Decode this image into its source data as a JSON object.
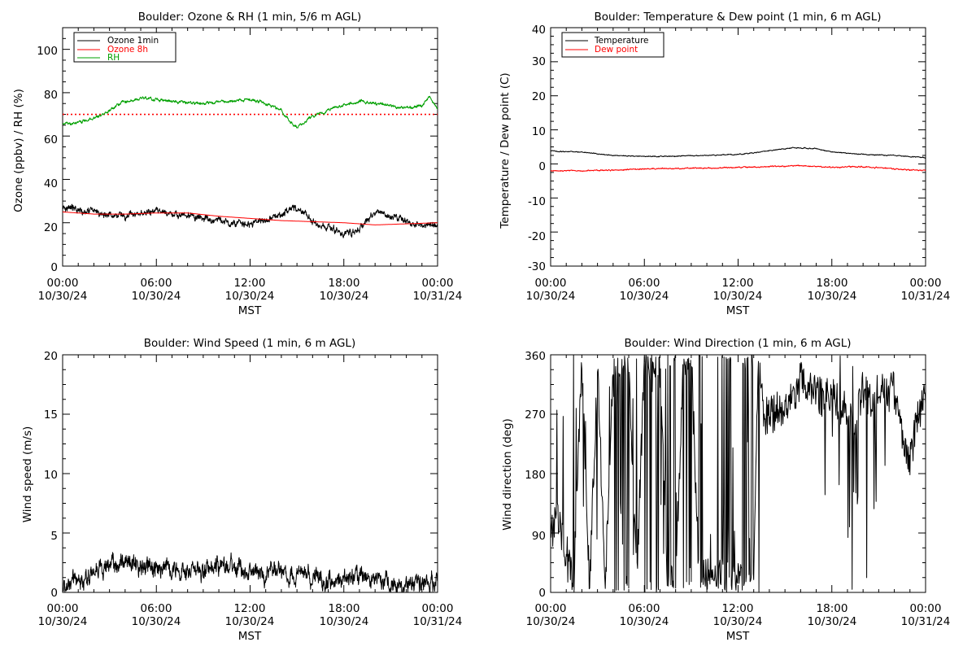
{
  "chart_data": [
    {
      "type": "line",
      "title": "Boulder: Ozone & RH (1 min, 5/6 m AGL)",
      "ylabel": "Ozone (ppbv) / RH (%)",
      "xlabel": "MST",
      "ylim": [
        0,
        110
      ],
      "yticks": [
        "0",
        "20",
        "40",
        "60",
        "80",
        "100"
      ],
      "yticks_values": [
        0,
        20,
        40,
        60,
        80,
        100
      ],
      "xticks": [
        [
          "00:00",
          "10/30/24"
        ],
        [
          "06:00",
          "10/30/24"
        ],
        [
          "12:00",
          "10/30/24"
        ],
        [
          "18:00",
          "10/30/24"
        ],
        [
          "00:00",
          "10/31/24"
        ]
      ],
      "x_unit": "hours since 10/30/24 00:00 MST",
      "legend_position": "top-left",
      "reference_line": {
        "y": 70,
        "style": "dotted",
        "color": "#ff0000"
      },
      "series": [
        {
          "name": "Ozone 1min",
          "color": "#000000",
          "noise": 1.8,
          "points": [
            [
              0,
              28
            ],
            [
              1,
              26
            ],
            [
              2,
              25
            ],
            [
              3,
              24
            ],
            [
              4,
              23
            ],
            [
              5,
              24
            ],
            [
              6,
              25
            ],
            [
              7,
              24
            ],
            [
              8,
              23
            ],
            [
              9,
              22
            ],
            [
              10,
              21
            ],
            [
              11,
              20
            ],
            [
              12,
              19
            ],
            [
              13,
              21
            ],
            [
              14,
              24
            ],
            [
              14.7,
              27
            ],
            [
              15.5,
              25
            ],
            [
              16,
              20
            ],
            [
              17,
              18
            ],
            [
              18,
              15
            ],
            [
              19,
              17
            ],
            [
              19.5,
              22
            ],
            [
              20.5,
              25
            ],
            [
              21,
              23
            ],
            [
              22,
              20
            ],
            [
              23,
              19
            ],
            [
              24,
              18
            ]
          ]
        },
        {
          "name": "Ozone 8h",
          "color": "#ff0000",
          "noise": 0,
          "points": [
            [
              0,
              25
            ],
            [
              2,
              24
            ],
            [
              4,
              24
            ],
            [
              6,
              24.5
            ],
            [
              8,
              24.5
            ],
            [
              10,
              23
            ],
            [
              12,
              22
            ],
            [
              14,
              21
            ],
            [
              16,
              20.5
            ],
            [
              18,
              20
            ],
            [
              20,
              19
            ],
            [
              22,
              19.5
            ],
            [
              24,
              20
            ]
          ]
        },
        {
          "name": "RH",
          "color": "#00a000",
          "noise": 0.8,
          "points": [
            [
              0,
              65.5
            ],
            [
              1,
              66
            ],
            [
              2,
              68
            ],
            [
              3,
              72
            ],
            [
              4,
              76
            ],
            [
              5,
              77.5
            ],
            [
              6,
              77
            ],
            [
              7,
              76
            ],
            [
              8,
              75.5
            ],
            [
              9,
              75
            ],
            [
              10,
              76
            ],
            [
              11,
              76
            ],
            [
              12,
              77
            ],
            [
              13,
              75
            ],
            [
              14,
              72
            ],
            [
              14.5,
              67
            ],
            [
              15,
              64
            ],
            [
              16,
              69
            ],
            [
              17,
              72
            ],
            [
              18,
              74
            ],
            [
              19,
              76
            ],
            [
              20,
              75
            ],
            [
              21,
              74
            ],
            [
              22,
              73
            ],
            [
              23,
              74
            ],
            [
              23.5,
              78
            ],
            [
              24,
              73
            ]
          ]
        }
      ]
    },
    {
      "type": "line",
      "title": "Boulder: Temperature & Dew point (1 min, 6 m AGL)",
      "ylabel": "Temperature / Dew point (C)",
      "xlabel": "MST",
      "ylim": [
        -30,
        40
      ],
      "yticks": [
        "-30",
        "-20",
        "-10",
        "0",
        "10",
        "20",
        "30",
        "40"
      ],
      "yticks_values": [
        -30,
        -20,
        -10,
        0,
        10,
        20,
        30,
        40
      ],
      "xticks": [
        [
          "00:00",
          "10/30/24"
        ],
        [
          "06:00",
          "10/30/24"
        ],
        [
          "12:00",
          "10/30/24"
        ],
        [
          "18:00",
          "10/30/24"
        ],
        [
          "00:00",
          "10/31/24"
        ]
      ],
      "x_unit": "hours since 10/30/24 00:00 MST",
      "legend_position": "top-left",
      "series": [
        {
          "name": "Temperature",
          "color": "#000000",
          "noise": 0.15,
          "points": [
            [
              0,
              3.8
            ],
            [
              2,
              3.5
            ],
            [
              4,
              2.5
            ],
            [
              6,
              2.2
            ],
            [
              8,
              2.3
            ],
            [
              10,
              2.5
            ],
            [
              12,
              2.8
            ],
            [
              14,
              3.8
            ],
            [
              15.5,
              4.8
            ],
            [
              17,
              4.5
            ],
            [
              18,
              3.5
            ],
            [
              20,
              2.8
            ],
            [
              22,
              2.5
            ],
            [
              24,
              1.8
            ]
          ]
        },
        {
          "name": "Dew point",
          "color": "#ff0000",
          "noise": 0.2,
          "points": [
            [
              0,
              -2
            ],
            [
              2,
              -2
            ],
            [
              4,
              -1.8
            ],
            [
              6,
              -1.5
            ],
            [
              8,
              -1.3
            ],
            [
              10,
              -1.2
            ],
            [
              12,
              -1
            ],
            [
              14,
              -0.8
            ],
            [
              16,
              -0.5
            ],
            [
              18,
              -1
            ],
            [
              20,
              -0.8
            ],
            [
              22,
              -1.5
            ],
            [
              24,
              -2
            ]
          ]
        }
      ]
    },
    {
      "type": "line",
      "title": "Boulder: Wind Speed (1 min, 6 m AGL)",
      "ylabel": "Wind speed (m/s)",
      "xlabel": "MST",
      "ylim": [
        0,
        20
      ],
      "yticks": [
        "0",
        "5",
        "10",
        "15",
        "20"
      ],
      "yticks_values": [
        0,
        5,
        10,
        15,
        20
      ],
      "xticks": [
        [
          "00:00",
          "10/30/24"
        ],
        [
          "06:00",
          "10/30/24"
        ],
        [
          "12:00",
          "10/30/24"
        ],
        [
          "18:00",
          "10/30/24"
        ],
        [
          "00:00",
          "10/31/24"
        ]
      ],
      "x_unit": "hours since 10/30/24 00:00 MST",
      "series": [
        {
          "name": "",
          "color": "#000000",
          "noise": 0.9,
          "floor": 0,
          "points": [
            [
              0,
              0.3
            ],
            [
              1,
              0.8
            ],
            [
              2,
              1.5
            ],
            [
              3,
              2.3
            ],
            [
              4,
              2.4
            ],
            [
              5,
              2.5
            ],
            [
              6,
              2.2
            ],
            [
              7,
              2.0
            ],
            [
              8,
              1.8
            ],
            [
              9,
              1.7
            ],
            [
              10,
              2.2
            ],
            [
              11,
              2.0
            ],
            [
              12,
              1.5
            ],
            [
              13,
              1.8
            ],
            [
              14,
              1.6
            ],
            [
              15,
              1.5
            ],
            [
              16,
              1.2
            ],
            [
              17,
              1.0
            ],
            [
              18,
              1.1
            ],
            [
              19,
              1.3
            ],
            [
              20,
              1.3
            ],
            [
              21,
              0.6
            ],
            [
              22,
              0.5
            ],
            [
              23,
              0.8
            ],
            [
              24,
              1.2
            ]
          ]
        }
      ]
    },
    {
      "type": "line",
      "title": "Boulder: Wind Direction (1 min, 6 m AGL)",
      "ylabel": "Wind direction (deg)",
      "xlabel": "MST",
      "ylim": [
        0,
        360
      ],
      "yticks": [
        "0",
        "90",
        "180",
        "270",
        "360"
      ],
      "yticks_values": [
        0,
        90,
        180,
        270,
        360
      ],
      "xticks": [
        [
          "00:00",
          "10/30/24"
        ],
        [
          "06:00",
          "10/30/24"
        ],
        [
          "12:00",
          "10/30/24"
        ],
        [
          "18:00",
          "10/30/24"
        ],
        [
          "00:00",
          "10/31/24"
        ]
      ],
      "x_unit": "hours since 10/30/24 00:00 MST",
      "series": [
        {
          "name": "",
          "color": "#000000",
          "noise": 0,
          "wrap": true,
          "points": [
            [
              0,
              95
            ],
            [
              0.5,
              110
            ],
            [
              1,
              60
            ],
            [
              1.5,
              20
            ],
            [
              2,
              350
            ],
            [
              2.5,
              10
            ],
            [
              3,
              340
            ],
            [
              3.5,
              15
            ],
            [
              4,
              355
            ],
            [
              4.5,
              345
            ],
            [
              5,
              350
            ],
            [
              5.5,
              10
            ],
            [
              6,
              345
            ],
            [
              6.5,
              350
            ],
            [
              7,
              340
            ],
            [
              7.5,
              5
            ],
            [
              8,
              20
            ],
            [
              8.5,
              350
            ],
            [
              9,
              355
            ],
            [
              9.5,
              25
            ],
            [
              10,
              30
            ],
            [
              10.5,
              20
            ],
            [
              11,
              25
            ],
            [
              11.5,
              15
            ],
            [
              12,
              30
            ],
            [
              12.5,
              5
            ],
            [
              13,
              10
            ],
            [
              13.3,
              355
            ],
            [
              13.6,
              270
            ],
            [
              14,
              265
            ],
            [
              14.5,
              275
            ],
            [
              15,
              280
            ],
            [
              15.5,
              300
            ],
            [
              16,
              320
            ],
            [
              16.5,
              310
            ],
            [
              17,
              300
            ],
            [
              17.5,
              295
            ],
            [
              18,
              300
            ],
            [
              18.5,
              285
            ],
            [
              19,
              270
            ],
            [
              19.5,
              250
            ],
            [
              20,
              310
            ],
            [
              20.5,
              290
            ],
            [
              21,
              320
            ],
            [
              21.5,
              300
            ],
            [
              22,
              305
            ],
            [
              22.5,
              240
            ],
            [
              23,
              200
            ],
            [
              23.5,
              270
            ],
            [
              24,
              290
            ]
          ]
        }
      ]
    }
  ]
}
